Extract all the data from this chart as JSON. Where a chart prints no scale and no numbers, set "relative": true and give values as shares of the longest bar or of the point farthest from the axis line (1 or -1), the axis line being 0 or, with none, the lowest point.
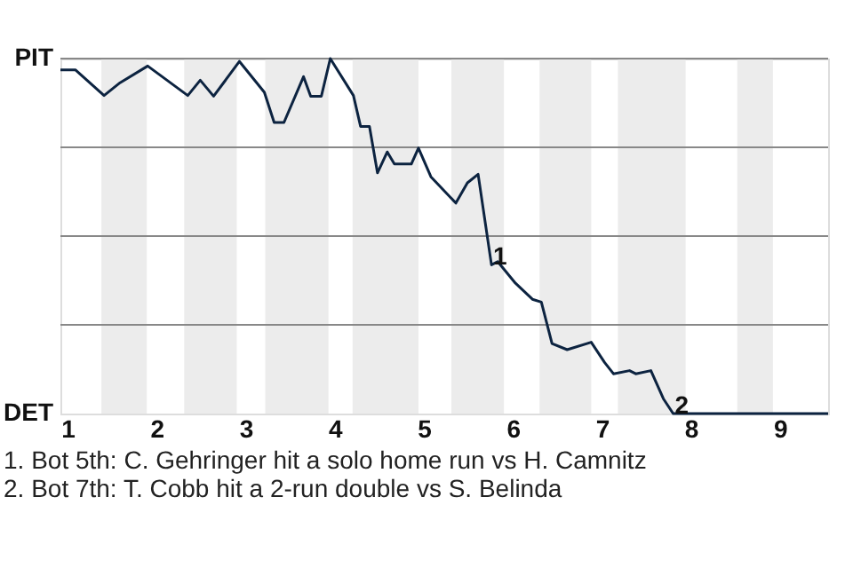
{
  "chart_data": {
    "type": "line",
    "relative": true,
    "x": [
      0.92,
      1.09,
      1.41,
      1.59,
      1.9,
      2.35,
      2.49,
      2.64,
      2.93,
      3.21,
      3.32,
      3.43,
      3.65,
      3.73,
      3.85,
      3.95,
      4.21,
      4.29,
      4.39,
      4.48,
      4.59,
      4.67,
      4.86,
      4.94,
      5.08,
      5.36,
      5.49,
      5.61,
      5.76,
      5.83,
      6.03,
      6.22,
      6.32,
      6.44,
      6.61,
      6.88,
      7.03,
      7.13,
      7.31,
      7.38,
      7.55,
      7.69,
      7.8,
      7.95,
      9.54
    ],
    "series": [
      {
        "color": "#0c2340",
        "values": [
          0.968,
          0.968,
          0.896,
          0.932,
          0.979,
          0.896,
          0.939,
          0.894,
          0.992,
          0.905,
          0.82,
          0.82,
          0.949,
          0.894,
          0.894,
          1,
          0.896,
          0.809,
          0.809,
          0.678,
          0.737,
          0.703,
          0.703,
          0.748,
          0.667,
          0.593,
          0.65,
          0.674,
          0.419,
          0.428,
          0.367,
          0.322,
          0.314,
          0.197,
          0.18,
          0.201,
          0.144,
          0.112,
          0.121,
          0.112,
          0.121,
          0.042,
          0,
          0,
          0
        ]
      }
    ],
    "xlim": [
      0.92,
      9.54
    ],
    "xticks": [
      1,
      2,
      3,
      4,
      5,
      6,
      7,
      8,
      9
    ],
    "grid": "y",
    "marker": "none",
    "line_style": "solid",
    "bands": [
      {
        "axis": "x",
        "from": 1.38,
        "to": 1.89,
        "color": "#ececec"
      },
      {
        "axis": "x",
        "from": 2.31,
        "to": 2.9,
        "color": "#ececec"
      },
      {
        "axis": "x",
        "from": 3.22,
        "to": 3.93,
        "color": "#ececec"
      },
      {
        "axis": "x",
        "from": 4.2,
        "to": 4.94,
        "color": "#ececec"
      },
      {
        "axis": "x",
        "from": 5.31,
        "to": 5.9,
        "color": "#ececec"
      },
      {
        "axis": "x",
        "from": 6.3,
        "to": 6.88,
        "color": "#ececec"
      },
      {
        "axis": "x",
        "from": 7.18,
        "to": 7.94,
        "color": "#ececec"
      },
      {
        "axis": "x",
        "from": 8.52,
        "to": 8.92,
        "color": "#ececec"
      }
    ],
    "annotations": [
      "PIT",
      "DET",
      {
        "text": "1",
        "x": 5.76,
        "y": 0.419
      },
      {
        "text": "2",
        "x": 7.8,
        "y": 0
      },
      "1. Bot 5th: C. Gehringer hit a solo home run vs H. Camnitz",
      "2. Bot 7th: T. Cobb hit a 2-run double vs S. Belinda"
    ]
  }
}
